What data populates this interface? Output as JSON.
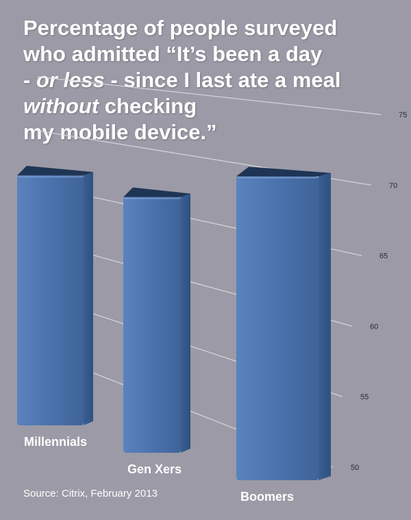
{
  "title": {
    "line1": "Percentage of people surveyed",
    "line2": "who admitted “It’s been a day",
    "line3_pre": "- ",
    "line3_em": "or less",
    "line3_post": " - since I last ate a meal",
    "line4_em": "without",
    "line4_post": " checking",
    "line5": "my mobile device.”"
  },
  "source": "Source: Citrix, February 2013",
  "colors": {
    "background": "#9b9aa6",
    "bar_front": "#4b72ad",
    "bar_side": "#2f5080",
    "bar_top": "#1f3555",
    "gridline": "#d8d8df"
  },
  "chart_data": {
    "type": "bar",
    "categories": [
      "Millennials",
      "Gen Xers",
      "Boomers"
    ],
    "values": [
      65.5,
      65.5,
      69
    ],
    "yticks": [
      50,
      55,
      60,
      65,
      70,
      75
    ],
    "ylim": [
      50,
      75
    ],
    "grid": true,
    "style": "3d-perspective"
  }
}
